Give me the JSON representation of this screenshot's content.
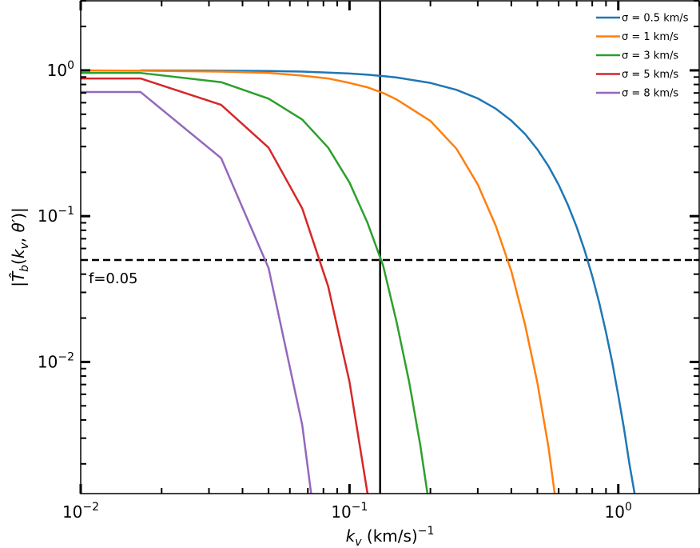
{
  "chart_data": {
    "type": "line",
    "x_scale": "log",
    "y_scale": "log",
    "xlim": [
      0.01,
      2.0
    ],
    "ylim": [
      0.00125,
      3.0
    ],
    "xlabel": "k_v (km/s)^-1",
    "ylabel": "|T̂_b(k_v, θ')|",
    "x_ticks": [
      {
        "value": 0.01,
        "base": "10",
        "exp": "−2"
      },
      {
        "value": 0.1,
        "base": "10",
        "exp": "−1"
      },
      {
        "value": 1,
        "base": "10",
        "exp": "0"
      }
    ],
    "y_ticks": [
      {
        "value": 0.01,
        "base": "10",
        "exp": "−2"
      },
      {
        "value": 0.1,
        "base": "10",
        "exp": "−1"
      },
      {
        "value": 1,
        "base": "10",
        "exp": "0"
      }
    ],
    "legend_position": "top-right",
    "hline": {
      "y": 0.05,
      "style": "dashed",
      "label": "f=0.05"
    },
    "vline": {
      "x": 0.13,
      "style": "solid"
    },
    "series": [
      {
        "name": "σ = 0.5 km/s",
        "color": "#1f77b4",
        "sigma": 0.5,
        "points": [
          [
            0.0167,
            1.0
          ],
          [
            0.0333,
            0.995
          ],
          [
            0.05,
            0.99
          ],
          [
            0.0667,
            0.98
          ],
          [
            0.0833,
            0.966
          ],
          [
            0.1,
            0.951
          ],
          [
            0.1167,
            0.934
          ],
          [
            0.1333,
            0.914
          ],
          [
            0.15,
            0.893
          ],
          [
            0.2,
            0.82
          ],
          [
            0.25,
            0.735
          ],
          [
            0.3,
            0.642
          ],
          [
            0.35,
            0.546
          ],
          [
            0.4,
            0.452
          ],
          [
            0.45,
            0.366
          ],
          [
            0.5,
            0.287
          ],
          [
            0.55,
            0.22
          ],
          [
            0.6,
            0.164
          ],
          [
            0.65,
            0.119
          ],
          [
            0.7,
            0.0843
          ],
          [
            0.75,
            0.058
          ],
          [
            0.8,
            0.0388
          ],
          [
            0.85,
            0.0253
          ],
          [
            0.9,
            0.016
          ],
          [
            0.95,
            0.0099
          ],
          [
            1.0,
            0.0059
          ],
          [
            1.05,
            0.0035
          ],
          [
            1.1,
            0.002
          ],
          [
            1.15,
            0.00125
          ]
        ]
      },
      {
        "name": "σ = 1 km/s",
        "color": "#ff7f0e",
        "sigma": 1,
        "points": [
          [
            0.01,
            1.0
          ],
          [
            0.0167,
            0.995
          ],
          [
            0.0333,
            0.98
          ],
          [
            0.05,
            0.96
          ],
          [
            0.0667,
            0.92
          ],
          [
            0.0833,
            0.88
          ],
          [
            0.1,
            0.82
          ],
          [
            0.1167,
            0.765
          ],
          [
            0.1333,
            0.7
          ],
          [
            0.15,
            0.63
          ],
          [
            0.2,
            0.45
          ],
          [
            0.25,
            0.29
          ],
          [
            0.3,
            0.165
          ],
          [
            0.35,
            0.086
          ],
          [
            0.4,
            0.042
          ],
          [
            0.45,
            0.018
          ],
          [
            0.5,
            0.0072
          ],
          [
            0.55,
            0.0026
          ],
          [
            0.58,
            0.00125
          ]
        ]
      },
      {
        "name": "σ = 3 km/s",
        "color": "#2ca02c",
        "sigma": 3,
        "points": [
          [
            0.01,
            0.96
          ],
          [
            0.0167,
            0.96
          ],
          [
            0.0333,
            0.83
          ],
          [
            0.05,
            0.64
          ],
          [
            0.0667,
            0.46
          ],
          [
            0.0833,
            0.295
          ],
          [
            0.1,
            0.17
          ],
          [
            0.1167,
            0.09
          ],
          [
            0.1333,
            0.046
          ],
          [
            0.15,
            0.0185
          ],
          [
            0.1667,
            0.0073
          ],
          [
            0.1833,
            0.0027
          ],
          [
            0.195,
            0.00125
          ]
        ]
      },
      {
        "name": "σ = 5 km/s",
        "color": "#d62728",
        "sigma": 5,
        "points": [
          [
            0.01,
            0.88
          ],
          [
            0.0167,
            0.88
          ],
          [
            0.0333,
            0.58
          ],
          [
            0.05,
            0.295
          ],
          [
            0.0667,
            0.113
          ],
          [
            0.0833,
            0.033
          ],
          [
            0.1,
            0.0073
          ],
          [
            0.1167,
            0.00125
          ]
        ]
      },
      {
        "name": "σ = 8 km/s",
        "color": "#9467bd",
        "sigma": 8,
        "points": [
          [
            0.01,
            0.71
          ],
          [
            0.0167,
            0.71
          ],
          [
            0.0333,
            0.25
          ],
          [
            0.05,
            0.044
          ],
          [
            0.0667,
            0.0037
          ],
          [
            0.072,
            0.00125
          ]
        ]
      }
    ]
  }
}
